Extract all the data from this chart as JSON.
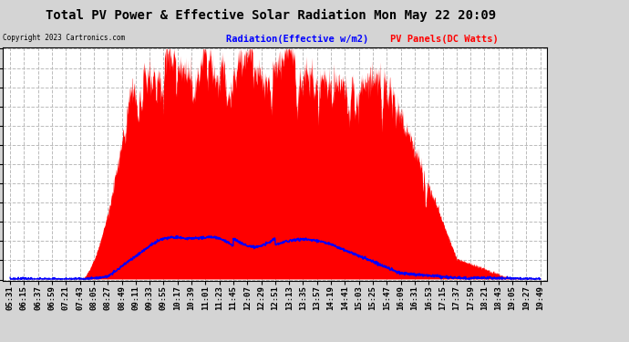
{
  "title": "Total PV Power & Effective Solar Radiation Mon May 22 20:09",
  "copyright": "Copyright 2023 Cartronics.com",
  "legend_blue": "Radiation(Effective w/m2)",
  "legend_red": "PV Panels(DC Watts)",
  "background_color": "#d4d4d4",
  "plot_bg_color": "#ffffff",
  "grid_color": "#aaaaaa",
  "y_ticks": [
    -7.2,
    225.9,
    459.0,
    692.1,
    925.2,
    1158.3,
    1391.4,
    1624.5,
    1857.6,
    2090.7,
    2323.8,
    2556.9,
    2790.0
  ],
  "ylim_min": -7.2,
  "ylim_max": 2790.0,
  "x_labels": [
    "05:31",
    "06:15",
    "06:37",
    "06:59",
    "07:21",
    "07:43",
    "08:05",
    "08:27",
    "08:49",
    "09:11",
    "09:33",
    "09:55",
    "10:17",
    "10:39",
    "11:01",
    "11:23",
    "11:45",
    "12:07",
    "12:29",
    "12:51",
    "13:13",
    "13:35",
    "13:57",
    "14:19",
    "14:41",
    "15:03",
    "15:25",
    "15:47",
    "16:09",
    "16:31",
    "16:53",
    "17:15",
    "17:37",
    "17:59",
    "18:21",
    "18:43",
    "19:05",
    "19:27",
    "19:49"
  ],
  "title_fontsize": 10,
  "tick_fontsize": 6.5,
  "legend_fontsize": 7.5
}
